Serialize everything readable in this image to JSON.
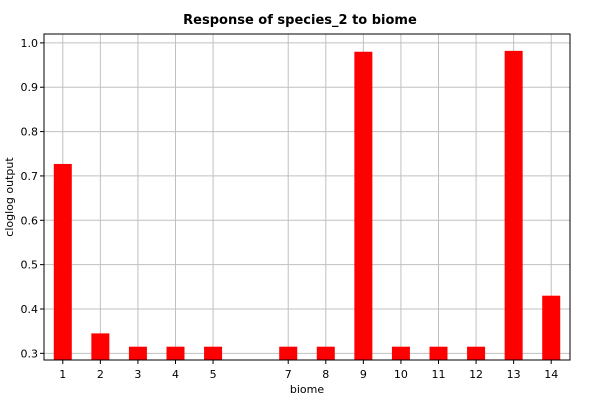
{
  "chart_data": {
    "type": "bar",
    "title": "Response of species_2 to biome",
    "xlabel": "biome",
    "ylabel": "cloglog output",
    "categories": [
      "1",
      "2",
      "3",
      "4",
      "5",
      "7",
      "8",
      "9",
      "10",
      "11",
      "12",
      "13",
      "14"
    ],
    "x": [
      1,
      2,
      3,
      4,
      5,
      7,
      8,
      9,
      10,
      11,
      12,
      13,
      14
    ],
    "values": [
      0.727,
      0.345,
      0.315,
      0.315,
      0.315,
      0.315,
      0.315,
      0.98,
      0.315,
      0.315,
      0.315,
      0.982,
      0.43
    ],
    "ylim": [
      0.285,
      1.02
    ],
    "yticks": [
      0.3,
      0.4,
      0.5,
      0.6,
      0.7,
      0.8,
      0.9,
      1.0
    ],
    "ytick_labels": [
      "0.3",
      "0.4",
      "0.5",
      "0.6",
      "0.7",
      "0.8",
      "0.9",
      "1.0"
    ],
    "grid": true,
    "bar_color": "#ff0000",
    "grid_color": "#c0c0c0"
  }
}
